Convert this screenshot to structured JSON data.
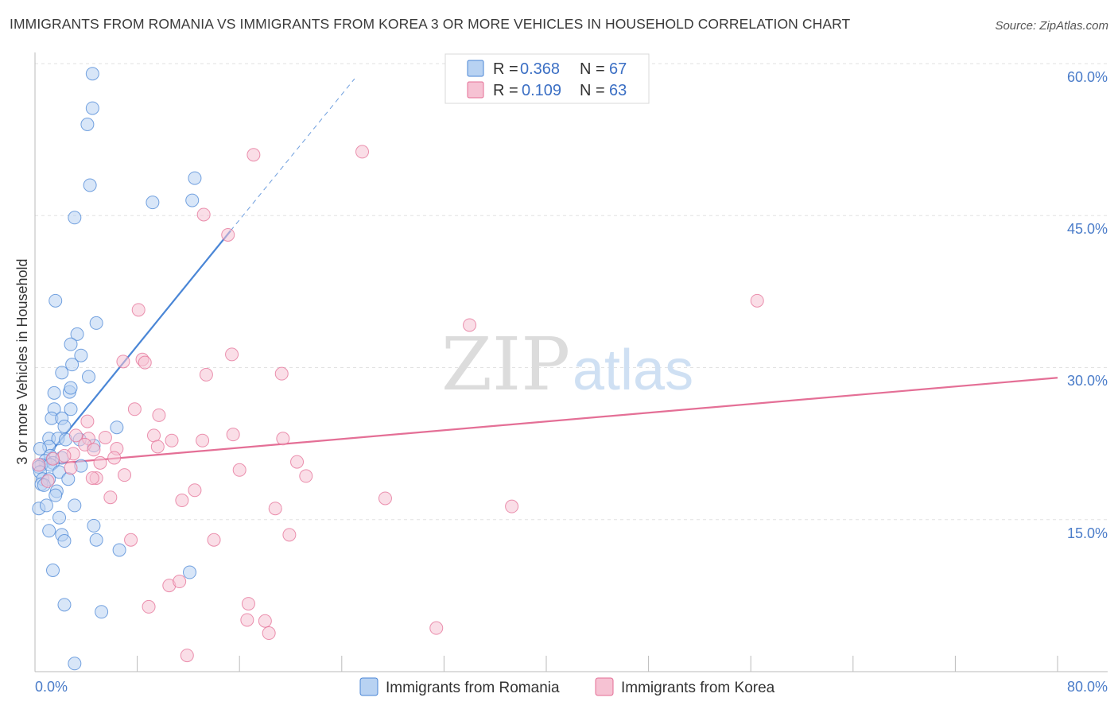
{
  "header": {
    "title": "IMMIGRANTS FROM ROMANIA VS IMMIGRANTS FROM KOREA 3 OR MORE VEHICLES IN HOUSEHOLD CORRELATION CHART",
    "source": "Source: ZipAtlas.com"
  },
  "colors": {
    "romania": "#4a86d6",
    "romania_fill": "#b8d2f2",
    "korea": "#e46f96",
    "korea_fill": "#f6c2d3",
    "axis_label": "#4a7cc9"
  },
  "watermark": {
    "zip": "ZIP",
    "atlas": "atlas"
  },
  "chart_data": {
    "type": "scatter",
    "title": "IMMIGRANTS FROM ROMANIA VS IMMIGRANTS FROM KOREA 3 OR MORE VEHICLES IN HOUSEHOLD CORRELATION CHART",
    "xlabel": "",
    "ylabel": "3 or more Vehicles in Household",
    "xlim": [
      0,
      80
    ],
    "ylim": [
      0,
      60
    ],
    "x_tick_labels": [
      "0.0%",
      "80.0%"
    ],
    "y_ticks": [
      15,
      30,
      45,
      60
    ],
    "y_tick_labels": [
      "15.0%",
      "30.0%",
      "45.0%",
      "60.0%"
    ],
    "legend": [
      {
        "r_label": "R = ",
        "r": "0.368",
        "n_label": "N = ",
        "n": "67"
      },
      {
        "r_label": "R = ",
        "r": "0.109",
        "n_label": "N = ",
        "n": "63"
      }
    ],
    "series": [
      {
        "name": "Immigrants from Romania",
        "trend": {
          "x": [
            0.3,
            15.3
          ],
          "y": [
            20.2,
            43.5
          ],
          "dash_to": [
            25,
            58.5
          ]
        },
        "points": [
          [
            4.5,
            59
          ],
          [
            4.5,
            55.6
          ],
          [
            4.1,
            54
          ],
          [
            4.3,
            48
          ],
          [
            12.5,
            48.7
          ],
          [
            12.3,
            46.5
          ],
          [
            9.2,
            46.3
          ],
          [
            3.1,
            44.8
          ],
          [
            1.6,
            36.6
          ],
          [
            4.8,
            34.4
          ],
          [
            3.3,
            33.3
          ],
          [
            2.8,
            32.3
          ],
          [
            3.6,
            31.2
          ],
          [
            2.9,
            30.3
          ],
          [
            2.1,
            29.5
          ],
          [
            4.2,
            29.1
          ],
          [
            1.5,
            27.5
          ],
          [
            2.7,
            27.6
          ],
          [
            2.8,
            28
          ],
          [
            1.5,
            25.9
          ],
          [
            2.8,
            25.9
          ],
          [
            1.3,
            25
          ],
          [
            2.1,
            25
          ],
          [
            2.3,
            24.2
          ],
          [
            6.4,
            24.1
          ],
          [
            1.1,
            23
          ],
          [
            1.8,
            23
          ],
          [
            2.4,
            22.9
          ],
          [
            3.5,
            22.9
          ],
          [
            1.1,
            22.2
          ],
          [
            4.6,
            22.3
          ],
          [
            0.4,
            22
          ],
          [
            1.2,
            21.3
          ],
          [
            2.1,
            21.1
          ],
          [
            0.8,
            20.8
          ],
          [
            1.4,
            20.6
          ],
          [
            0.5,
            20.4
          ],
          [
            1.2,
            20.4
          ],
          [
            0.3,
            20.2
          ],
          [
            3.6,
            20.3
          ],
          [
            0.4,
            19.7
          ],
          [
            1.9,
            19.7
          ],
          [
            0.6,
            19
          ],
          [
            1.1,
            19
          ],
          [
            2.6,
            19
          ],
          [
            0.5,
            18.5
          ],
          [
            0.7,
            18.4
          ],
          [
            1.7,
            17.8
          ],
          [
            1.6,
            17.4
          ],
          [
            0.3,
            16.1
          ],
          [
            0.9,
            16.4
          ],
          [
            3.1,
            16.4
          ],
          [
            1.9,
            15.2
          ],
          [
            1.1,
            13.9
          ],
          [
            4.6,
            14.4
          ],
          [
            2.1,
            13.5
          ],
          [
            2.3,
            12.9
          ],
          [
            4.8,
            13
          ],
          [
            6.6,
            12
          ],
          [
            1.4,
            10
          ],
          [
            12.1,
            9.8
          ],
          [
            2.3,
            6.6
          ],
          [
            5.2,
            5.9
          ],
          [
            3.1,
            0.8
          ]
        ]
      },
      {
        "name": "Immigrants from Korea",
        "trend": {
          "x": [
            0.3,
            80
          ],
          "y": [
            20.4,
            29
          ]
        },
        "points": [
          [
            17.1,
            51
          ],
          [
            25.6,
            51.3
          ],
          [
            13.2,
            45.1
          ],
          [
            15.1,
            43.1
          ],
          [
            56.5,
            36.6
          ],
          [
            8.1,
            35.7
          ],
          [
            34,
            34.2
          ],
          [
            15.4,
            31.3
          ],
          [
            6.9,
            30.6
          ],
          [
            8.4,
            30.8
          ],
          [
            8.6,
            30.5
          ],
          [
            13.4,
            29.3
          ],
          [
            19.3,
            29.4
          ],
          [
            7.8,
            25.9
          ],
          [
            9.7,
            25.3
          ],
          [
            4.1,
            24.7
          ],
          [
            3.2,
            23.3
          ],
          [
            9.3,
            23.3
          ],
          [
            15.5,
            23.4
          ],
          [
            5.5,
            23.1
          ],
          [
            4.2,
            23
          ],
          [
            10.7,
            22.8
          ],
          [
            13.1,
            22.8
          ],
          [
            19.4,
            23
          ],
          [
            3.9,
            22.4
          ],
          [
            9.6,
            22.2
          ],
          [
            6.4,
            22
          ],
          [
            3,
            21.5
          ],
          [
            4.6,
            21.9
          ],
          [
            2.3,
            21.3
          ],
          [
            6.2,
            21.1
          ],
          [
            1.4,
            21
          ],
          [
            5.1,
            20.6
          ],
          [
            20.5,
            20.7
          ],
          [
            0.3,
            20.4
          ],
          [
            2.8,
            20.1
          ],
          [
            16,
            19.9
          ],
          [
            4.8,
            19.1
          ],
          [
            7,
            19.4
          ],
          [
            21.2,
            19.3
          ],
          [
            4.5,
            19.1
          ],
          [
            1,
            18.8
          ],
          [
            12.5,
            17.9
          ],
          [
            5.9,
            17.2
          ],
          [
            11.5,
            16.9
          ],
          [
            27.4,
            17.1
          ],
          [
            37.3,
            16.3
          ],
          [
            18.8,
            16.1
          ],
          [
            19.9,
            13.5
          ],
          [
            7.5,
            13
          ],
          [
            14,
            13
          ],
          [
            10.5,
            8.5
          ],
          [
            11.3,
            8.9
          ],
          [
            8.9,
            6.4
          ],
          [
            16.7,
            6.7
          ],
          [
            16.6,
            5.1
          ],
          [
            18,
            5
          ],
          [
            18.3,
            3.8
          ],
          [
            31.4,
            4.3
          ],
          [
            11.9,
            1.6
          ]
        ]
      }
    ],
    "bottom_legend": [
      "Immigrants from Romania",
      "Immigrants from Korea"
    ]
  }
}
